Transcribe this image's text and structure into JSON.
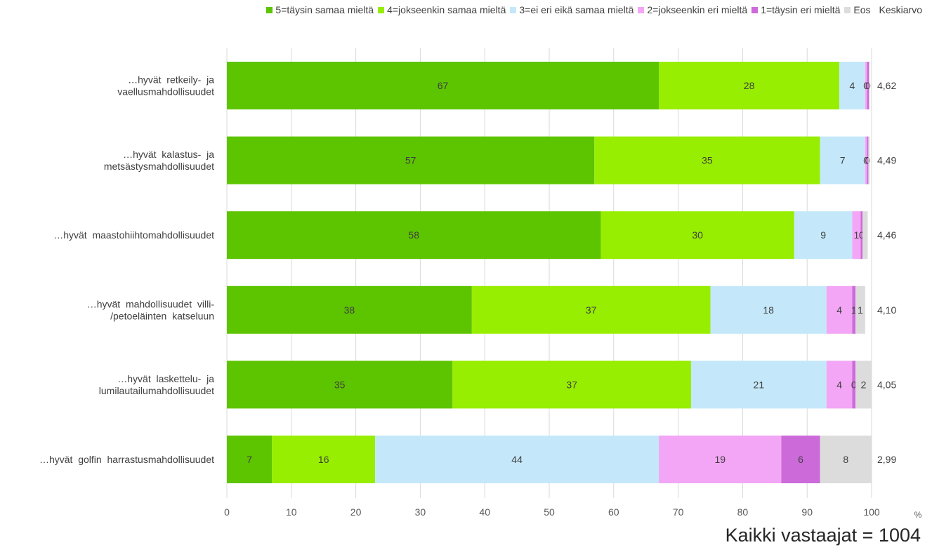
{
  "chart_data": {
    "type": "bar",
    "orientation": "horizontal",
    "stacked": true,
    "categories": [
      [
        "…hyvät  retkeily-  ja",
        "vaellusmahdollisuudet"
      ],
      [
        "…hyvät  kalastus-  ja",
        "metsästysmahdollisuudet"
      ],
      [
        "…hyvät  maastohiihtomahdollisuudet"
      ],
      [
        "…hyvät  mahdollisuudet  villi-",
        "/petoeläinten  katseluun"
      ],
      [
        "…hyvät  laskettelu-  ja",
        "lumilautailumahdollisuudet"
      ],
      [
        "…hyvät  golfin  harrastusmahdollisuudet"
      ]
    ],
    "series": [
      {
        "name": "5=täysin samaa mieltä",
        "color": "#5dc400",
        "values": [
          67,
          57,
          58,
          38,
          35,
          7
        ],
        "labels": [
          "67",
          "57",
          "58",
          "38",
          "35",
          "7"
        ]
      },
      {
        "name": "4=jokseenkin samaa mieltä",
        "color": "#97ee00",
        "values": [
          28,
          35,
          30,
          37,
          37,
          16
        ],
        "labels": [
          "28",
          "35",
          "30",
          "37",
          "37",
          "16"
        ]
      },
      {
        "name": "3=ei eri eikä samaa mieltä",
        "color": "#c4e8fa",
        "values": [
          4,
          7,
          9,
          18,
          21,
          44
        ],
        "labels": [
          "4",
          "7",
          "9",
          "18",
          "21",
          "44"
        ]
      },
      {
        "name": "2=jokseenkin eri mieltä",
        "color": "#f3a6f5",
        "values": [
          0.3,
          0.3,
          1.3,
          4,
          4,
          19
        ],
        "labels": [
          "0",
          "0",
          "1",
          "4",
          "4",
          "19"
        ]
      },
      {
        "name": "1=täysin eri mieltä",
        "color": "#cd6ada",
        "values": [
          0.3,
          0.2,
          0.3,
          0.5,
          0.5,
          6
        ],
        "labels": [
          "0",
          "0",
          "0",
          "1",
          "0",
          "6"
        ]
      },
      {
        "name": "Eos",
        "color": "#dcdcdc",
        "values": [
          0.1,
          0.2,
          0.8,
          1.5,
          2.5,
          8
        ],
        "labels": [
          "",
          "",
          "",
          "1",
          "2",
          "8"
        ]
      }
    ],
    "mean_label": "Keskiarvo",
    "means": [
      "4,62",
      "4,49",
      "4,46",
      "4,10",
      "4,05",
      "2,99"
    ],
    "x_ticks": [
      "0",
      "10",
      "20",
      "30",
      "40",
      "50",
      "60",
      "70",
      "80",
      "90",
      "100"
    ],
    "xlim": [
      0,
      100
    ],
    "x_unit": "%",
    "grid": true,
    "legend_position": "top-right"
  },
  "footnote": "Kaikki vastaajat = 1004"
}
